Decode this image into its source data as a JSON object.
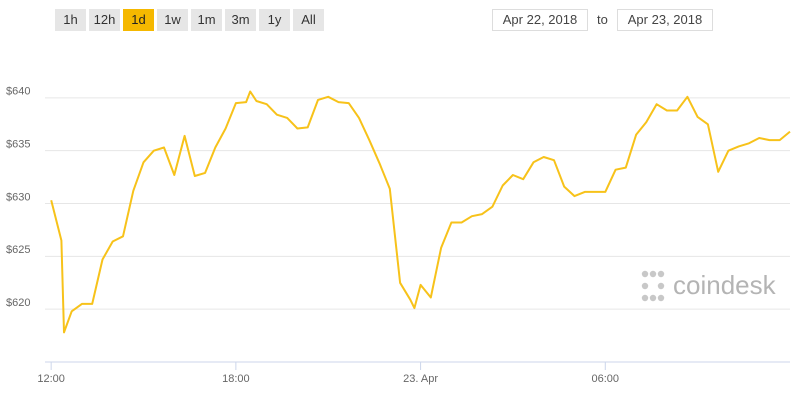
{
  "controls": {
    "range_buttons": [
      "1h",
      "12h",
      "1d",
      "1w",
      "1m",
      "3m",
      "1y",
      "All"
    ],
    "selected_range": "1d",
    "date_from": "Apr 22, 2018",
    "to_label": "to",
    "date_to": "Apr 23, 2018"
  },
  "watermark": "coindesk",
  "chart_data": {
    "type": "line",
    "color": "#f7c21a",
    "grid": true,
    "x": [
      "2018-04-22T12:00",
      "2018-04-22T12:20",
      "2018-04-22T12:25",
      "2018-04-22T12:40",
      "2018-04-22T13:00",
      "2018-04-22T13:20",
      "2018-04-22T13:40",
      "2018-04-22T14:00",
      "2018-04-22T14:20",
      "2018-04-22T14:40",
      "2018-04-22T15:00",
      "2018-04-22T15:20",
      "2018-04-22T15:40",
      "2018-04-22T16:00",
      "2018-04-22T16:20",
      "2018-04-22T16:40",
      "2018-04-22T17:00",
      "2018-04-22T17:20",
      "2018-04-22T17:40",
      "2018-04-22T18:00",
      "2018-04-22T18:20",
      "2018-04-22T18:28",
      "2018-04-22T18:40",
      "2018-04-22T19:00",
      "2018-04-22T19:20",
      "2018-04-22T19:40",
      "2018-04-22T20:00",
      "2018-04-22T20:20",
      "2018-04-22T20:40",
      "2018-04-22T21:00",
      "2018-04-22T21:20",
      "2018-04-22T21:40",
      "2018-04-22T22:00",
      "2018-04-22T22:20",
      "2018-04-22T22:40",
      "2018-04-22T23:00",
      "2018-04-22T23:20",
      "2018-04-22T23:40",
      "2018-04-22T23:48",
      "2018-04-23T00:00",
      "2018-04-23T00:20",
      "2018-04-23T00:40",
      "2018-04-23T01:00",
      "2018-04-23T01:20",
      "2018-04-23T01:40",
      "2018-04-23T02:00",
      "2018-04-23T02:20",
      "2018-04-23T02:40",
      "2018-04-23T03:00",
      "2018-04-23T03:20",
      "2018-04-23T03:40",
      "2018-04-23T04:00",
      "2018-04-23T04:20",
      "2018-04-23T04:40",
      "2018-04-23T05:00",
      "2018-04-23T05:20",
      "2018-04-23T05:40",
      "2018-04-23T06:00",
      "2018-04-23T06:20",
      "2018-04-23T06:40",
      "2018-04-23T07:00",
      "2018-04-23T07:20",
      "2018-04-23T07:40",
      "2018-04-23T08:00",
      "2018-04-23T08:20",
      "2018-04-23T08:40",
      "2018-04-23T09:00",
      "2018-04-23T09:20",
      "2018-04-23T09:40",
      "2018-04-23T10:00",
      "2018-04-23T10:20",
      "2018-04-23T10:40",
      "2018-04-23T11:00",
      "2018-04-23T11:20",
      "2018-04-23T11:40",
      "2018-04-23T12:00"
    ],
    "values": [
      630.3,
      626.5,
      617.8,
      619.8,
      620.5,
      620.5,
      624.7,
      626.4,
      626.9,
      631.2,
      633.9,
      635.0,
      635.3,
      632.7,
      636.4,
      632.6,
      632.9,
      635.3,
      637.1,
      639.5,
      639.6,
      640.6,
      639.7,
      639.4,
      638.4,
      638.1,
      637.1,
      637.2,
      639.8,
      640.1,
      639.6,
      639.5,
      638.1,
      636.0,
      633.8,
      631.4,
      622.5,
      620.9,
      620.1,
      622.3,
      621.1,
      625.8,
      628.2,
      628.2,
      628.8,
      629.0,
      629.7,
      631.7,
      632.7,
      632.3,
      633.9,
      634.4,
      634.1,
      631.6,
      630.7,
      631.1,
      631.1,
      631.1,
      633.2,
      633.4,
      636.5,
      637.7,
      639.4,
      638.8,
      638.8,
      640.1,
      638.2,
      637.5,
      633.0,
      635.0,
      635.4,
      635.7,
      636.2,
      636.0,
      636.0,
      636.8
    ],
    "xlim": [
      "2018-04-22T11:48",
      "2018-04-23T12:00"
    ],
    "xticks": [
      {
        "value": "2018-04-22T12:00",
        "label": "12:00"
      },
      {
        "value": "2018-04-22T18:00",
        "label": "18:00"
      },
      {
        "value": "2018-04-23T00:00",
        "label": "23. Apr"
      },
      {
        "value": "2018-04-23T06:00",
        "label": "06:00"
      }
    ],
    "ylim": [
      615,
      645
    ],
    "yticks": [
      {
        "value": 620,
        "label": "$620"
      },
      {
        "value": 625,
        "label": "$625"
      },
      {
        "value": 630,
        "label": "$630"
      },
      {
        "value": 635,
        "label": "$635"
      },
      {
        "value": 640,
        "label": "$640"
      }
    ]
  }
}
